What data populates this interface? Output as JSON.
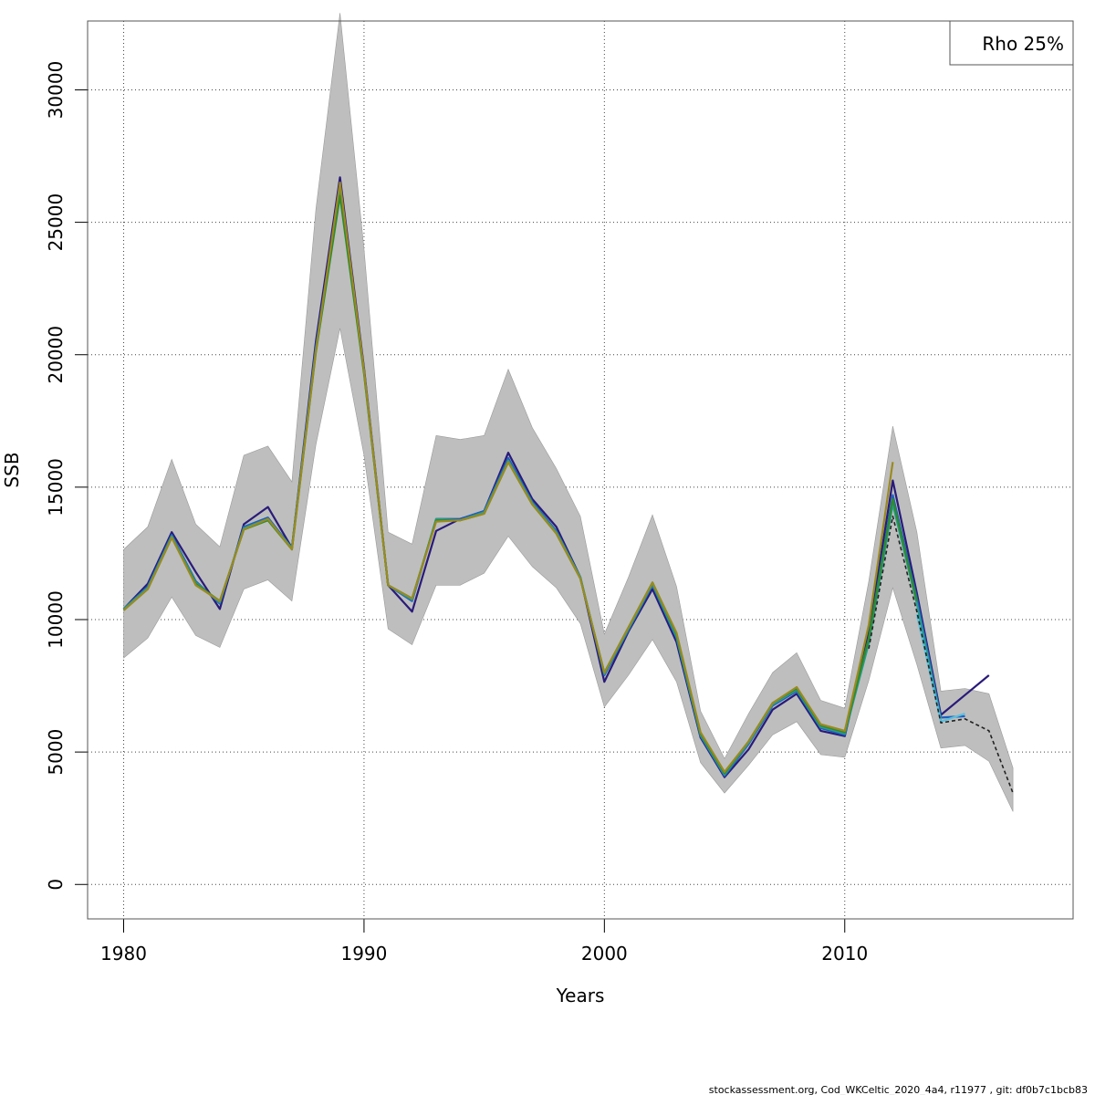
{
  "chart_data": {
    "type": "line",
    "xlabel": "Years",
    "ylabel": "SSB",
    "xlim": [
      1978.5,
      2019.5
    ],
    "ylim": [
      -1300,
      32600
    ],
    "x_ticks": [
      1980,
      1990,
      2000,
      2010
    ],
    "y_ticks": [
      0,
      5000,
      10000,
      15000,
      20000,
      25000,
      30000
    ],
    "grid": true,
    "legend": {
      "position": "top-right",
      "text": "Rho 25%"
    },
    "confidence_band": {
      "color": "#bebebe",
      "x": [
        1980,
        1981,
        1982,
        1983,
        1984,
        1985,
        1986,
        1987,
        1988,
        1989,
        1990,
        1991,
        1992,
        1993,
        1994,
        1995,
        1996,
        1997,
        1998,
        1999,
        2000,
        2001,
        2002,
        2003,
        2004,
        2005,
        2006,
        2007,
        2008,
        2009,
        2010,
        2011,
        2012,
        2013,
        2014,
        2015,
        2016,
        2017
      ],
      "lower": [
        8550,
        9300,
        10850,
        9400,
        8950,
        11150,
        11500,
        10700,
        16600,
        21000,
        16200,
        9650,
        9050,
        11300,
        11300,
        11750,
        13150,
        12000,
        11200,
        9850,
        6700,
        7900,
        9250,
        7650,
        4600,
        3450,
        4500,
        5650,
        6150,
        4900,
        4800,
        7700,
        11200,
        8300,
        5150,
        5250,
        4650,
        2750
      ],
      "upper": [
        12650,
        13500,
        16050,
        13600,
        12750,
        16200,
        16550,
        15200,
        25500,
        32900,
        24000,
        13300,
        12850,
        16950,
        16800,
        16950,
        19450,
        17250,
        15700,
        13900,
        9450,
        11600,
        13950,
        11250,
        6550,
        4750,
        6450,
        8000,
        8750,
        6950,
        6650,
        11450,
        17300,
        13300,
        7300,
        7400,
        7200,
        4400
      ]
    },
    "series": [
      {
        "color": "#2a1a7a",
        "x": [
          1980,
          1981,
          1982,
          1983,
          1984,
          1985,
          1986,
          1987,
          1988,
          1989,
          1990,
          1991,
          1992,
          1993,
          1994,
          1995,
          1996,
          1997,
          1998,
          1999,
          2000,
          2001,
          2002,
          2003,
          2004,
          2005,
          2006,
          2007,
          2008,
          2009,
          2010,
          2011,
          2012,
          2013,
          2014,
          2015,
          2016
        ],
        "values": [
          10400,
          11350,
          13300,
          11800,
          10400,
          13600,
          14250,
          12700,
          20500,
          26700,
          19500,
          11300,
          10300,
          13350,
          13800,
          14100,
          16300,
          14550,
          13500,
          11600,
          7650,
          9550,
          11150,
          9150,
          5550,
          4050,
          5100,
          6600,
          7200,
          5800,
          5600,
          9500,
          15250,
          11000,
          6400,
          7150,
          7900
        ]
      },
      {
        "color": "#1f5fbf",
        "x": [
          1980,
          1981,
          1982,
          1983,
          1984,
          1985,
          1986,
          1987,
          1988,
          1989,
          1990,
          1991,
          1992,
          1993,
          1994,
          1995,
          1996,
          1997,
          1998,
          1999,
          2000,
          2001,
          2002,
          2003,
          2004,
          2005,
          2006,
          2007,
          2008,
          2009,
          2010,
          2011,
          2012,
          2013,
          2014,
          2015
        ],
        "values": [
          10400,
          11250,
          13200,
          11450,
          10600,
          13500,
          13850,
          12700,
          20300,
          26300,
          19400,
          11300,
          10700,
          13800,
          13800,
          14100,
          16100,
          14450,
          13350,
          11600,
          7900,
          9600,
          11300,
          9300,
          5600,
          4100,
          5300,
          6750,
          7300,
          5900,
          5650,
          9300,
          14700,
          10800,
          6300,
          6350
        ]
      },
      {
        "color": "#2a9d8f",
        "x": [
          1980,
          1981,
          1982,
          1983,
          1984,
          1985,
          1986,
          1987,
          1988,
          1989,
          1990,
          1991,
          1992,
          1993,
          1994,
          1995,
          1996,
          1997,
          1998,
          1999,
          2000,
          2001,
          2002,
          2003,
          2004,
          2005,
          2006,
          2007,
          2008,
          2009,
          2010,
          2011,
          2012,
          2013,
          2014
        ],
        "values": [
          10400,
          11200,
          13150,
          11400,
          10650,
          13450,
          13800,
          12700,
          20200,
          26200,
          19350,
          11300,
          10750,
          13800,
          13750,
          14050,
          16000,
          14400,
          13300,
          11600,
          7950,
          9650,
          11350,
          9350,
          5650,
          4150,
          5350,
          6800,
          7350,
          5950,
          5700,
          9100,
          14350,
          10600,
          6200
        ]
      },
      {
        "color": "#2e8b2e",
        "x": [
          1980,
          1981,
          1982,
          1983,
          1984,
          1985,
          1986,
          1987,
          1988,
          1989,
          1990,
          1991,
          1992,
          1993,
          1994,
          1995,
          1996,
          1997,
          1998,
          1999,
          2000,
          2001,
          2002,
          2003,
          2004,
          2005,
          2006,
          2007,
          2008,
          2009,
          2010,
          2011,
          2012,
          2013
        ],
        "values": [
          10350,
          11150,
          13100,
          11350,
          10700,
          13400,
          13750,
          12650,
          20100,
          26000,
          19300,
          11300,
          10800,
          13750,
          13750,
          14000,
          15950,
          14350,
          13250,
          11550,
          8000,
          9700,
          11400,
          9450,
          5700,
          4200,
          5400,
          6850,
          7400,
          6000,
          5750,
          9300,
          14550,
          10700
        ]
      },
      {
        "color": "#9a8a20",
        "x": [
          1980,
          1981,
          1982,
          1983,
          1984,
          1985,
          1986,
          1987,
          1988,
          1989,
          1990,
          1991,
          1992,
          1993,
          1994,
          1995,
          1996,
          1997,
          1998,
          1999,
          2000,
          2001,
          2002,
          2003,
          2004,
          2005,
          2006,
          2007,
          2008,
          2009,
          2010,
          2011,
          2012
        ],
        "values": [
          10350,
          11150,
          13100,
          11300,
          10700,
          13400,
          13800,
          12650,
          20150,
          26500,
          19400,
          11300,
          10800,
          13700,
          13750,
          14000,
          15950,
          14350,
          13250,
          11550,
          8000,
          9700,
          11400,
          9500,
          5750,
          4250,
          5400,
          6850,
          7450,
          6050,
          5800,
          9800,
          15950
        ]
      },
      {
        "color": "#5bc0de",
        "x": [
          2013,
          2014,
          2015
        ],
        "values": [
          10200,
          6150,
          6450
        ]
      },
      {
        "color": "#222222",
        "dashed": true,
        "x": [
          2011,
          2012,
          2013,
          2014,
          2015,
          2016,
          2017
        ],
        "values": [
          8900,
          13900,
          10300,
          6100,
          6250,
          5800,
          3450
        ]
      }
    ]
  },
  "footer": "stockassessment.org, Cod_WKCeltic_2020_4a4, r11977 , git: df0b7c1bcb83"
}
